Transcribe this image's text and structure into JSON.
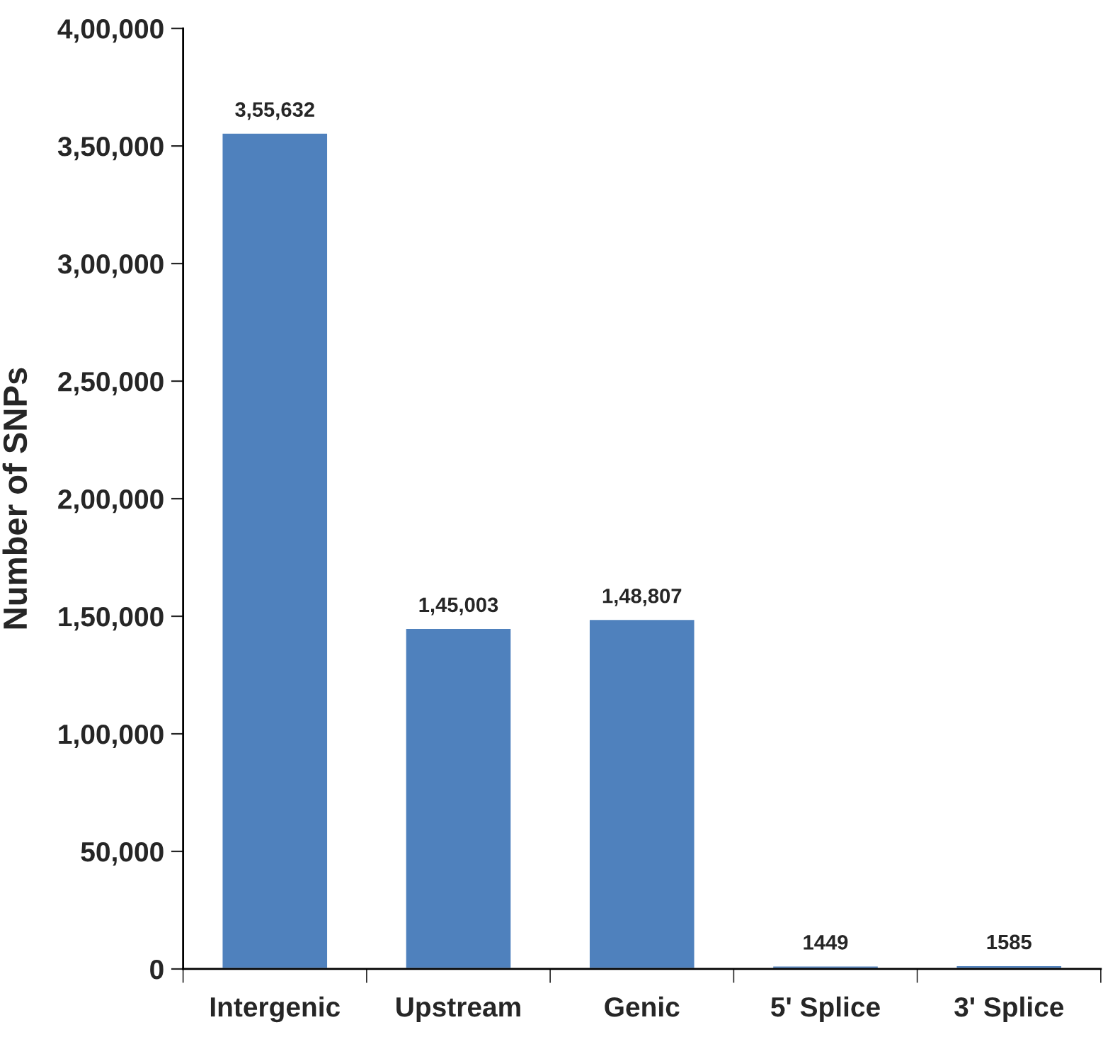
{
  "chart_data": {
    "type": "bar",
    "ylabel": "Number of SNPs",
    "categories": [
      "Intergenic",
      "Upstream",
      "Genic",
      "5' Splice",
      "3' Splice"
    ],
    "values": [
      355632,
      145003,
      148807,
      1449,
      1585
    ],
    "value_labels": [
      "3,55,632",
      "1,45,003",
      "1,48,807",
      "1449",
      "1585"
    ],
    "color": "#4f81bd",
    "ylim": [
      0,
      400000
    ],
    "yticks": [
      {
        "value": 0,
        "label": "0"
      },
      {
        "value": 50000,
        "label": "50,000"
      },
      {
        "value": 100000,
        "label": "1,00,000"
      },
      {
        "value": 150000,
        "label": "1,50,000"
      },
      {
        "value": 200000,
        "label": "2,00,000"
      },
      {
        "value": 250000,
        "label": "2,50,000"
      },
      {
        "value": 300000,
        "label": "3,00,000"
      },
      {
        "value": 350000,
        "label": "3,50,000"
      },
      {
        "value": 400000,
        "label": "4,00,000"
      }
    ],
    "grid": false,
    "legend": false
  }
}
